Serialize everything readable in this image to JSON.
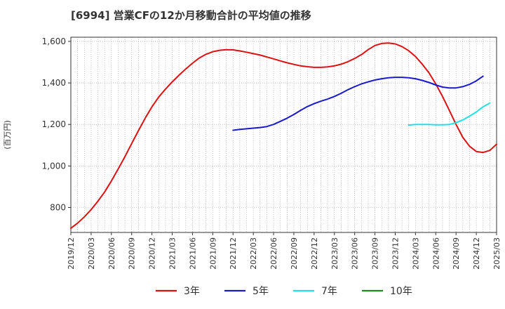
{
  "chart_data": {
    "type": "line",
    "title": "[6994]  営業CFの12か月移動合計の平均値の推移",
    "ylabel": "(百万円)",
    "xlabel": "",
    "ylim": [
      680,
      1620
    ],
    "xlim": [
      "2019-12",
      "2025-03"
    ],
    "yticks": [
      {
        "value": 800,
        "label": "800"
      },
      {
        "value": 1000,
        "label": "1,000"
      },
      {
        "value": 1200,
        "label": "1,200"
      },
      {
        "value": 1400,
        "label": "1,400"
      },
      {
        "value": 1600,
        "label": "1,600"
      }
    ],
    "xticks": [
      "2019/12",
      "2020/03",
      "2020/06",
      "2020/09",
      "2020/12",
      "2021/03",
      "2021/06",
      "2021/09",
      "2021/12",
      "2022/03",
      "2022/06",
      "2022/09",
      "2022/12",
      "2023/03",
      "2023/06",
      "2023/09",
      "2023/12",
      "2024/03",
      "2024/06",
      "2024/09",
      "2024/12",
      "2025/03"
    ],
    "grid": true,
    "legend_position": "bottom",
    "series": [
      {
        "name": "3年",
        "color": "#dd1111",
        "points": [
          [
            "2019-12",
            700
          ],
          [
            "2020-01",
            725
          ],
          [
            "2020-02",
            755
          ],
          [
            "2020-03",
            790
          ],
          [
            "2020-04",
            830
          ],
          [
            "2020-05",
            875
          ],
          [
            "2020-06",
            928
          ],
          [
            "2020-07",
            985
          ],
          [
            "2020-08",
            1045
          ],
          [
            "2020-09",
            1108
          ],
          [
            "2020-10",
            1170
          ],
          [
            "2020-11",
            1230
          ],
          [
            "2020-12",
            1285
          ],
          [
            "2021-01",
            1332
          ],
          [
            "2021-02",
            1370
          ],
          [
            "2021-03",
            1405
          ],
          [
            "2021-04",
            1437
          ],
          [
            "2021-05",
            1467
          ],
          [
            "2021-06",
            1495
          ],
          [
            "2021-07",
            1520
          ],
          [
            "2021-08",
            1538
          ],
          [
            "2021-09",
            1550
          ],
          [
            "2021-10",
            1557
          ],
          [
            "2021-11",
            1560
          ],
          [
            "2021-12",
            1559
          ],
          [
            "2022-01",
            1554
          ],
          [
            "2022-02",
            1548
          ],
          [
            "2022-03",
            1541
          ],
          [
            "2022-04",
            1534
          ],
          [
            "2022-05",
            1525
          ],
          [
            "2022-06",
            1516
          ],
          [
            "2022-07",
            1506
          ],
          [
            "2022-08",
            1497
          ],
          [
            "2022-09",
            1489
          ],
          [
            "2022-10",
            1482
          ],
          [
            "2022-11",
            1478
          ],
          [
            "2022-12",
            1475
          ],
          [
            "2023-01",
            1475
          ],
          [
            "2023-02",
            1477
          ],
          [
            "2023-03",
            1482
          ],
          [
            "2023-04",
            1490
          ],
          [
            "2023-05",
            1502
          ],
          [
            "2023-06",
            1518
          ],
          [
            "2023-07",
            1536
          ],
          [
            "2023-08",
            1560
          ],
          [
            "2023-09",
            1580
          ],
          [
            "2023-10",
            1590
          ],
          [
            "2023-11",
            1592
          ],
          [
            "2023-12",
            1588
          ],
          [
            "2024-01",
            1575
          ],
          [
            "2024-02",
            1555
          ],
          [
            "2024-03",
            1527
          ],
          [
            "2024-04",
            1490
          ],
          [
            "2024-05",
            1448
          ],
          [
            "2024-06",
            1395
          ],
          [
            "2024-07",
            1335
          ],
          [
            "2024-08",
            1268
          ],
          [
            "2024-09",
            1200
          ],
          [
            "2024-10",
            1138
          ],
          [
            "2024-11",
            1095
          ],
          [
            "2024-12",
            1070
          ],
          [
            "2025-01",
            1065
          ],
          [
            "2025-02",
            1075
          ],
          [
            "2025-03",
            1105
          ]
        ]
      },
      {
        "name": "5年",
        "color": "#1a1acc",
        "points": [
          [
            "2021-12",
            1172
          ],
          [
            "2022-01",
            1176
          ],
          [
            "2022-02",
            1179
          ],
          [
            "2022-03",
            1182
          ],
          [
            "2022-04",
            1185
          ],
          [
            "2022-05",
            1190
          ],
          [
            "2022-06",
            1200
          ],
          [
            "2022-07",
            1215
          ],
          [
            "2022-08",
            1230
          ],
          [
            "2022-09",
            1248
          ],
          [
            "2022-10",
            1268
          ],
          [
            "2022-11",
            1286
          ],
          [
            "2022-12",
            1300
          ],
          [
            "2023-01",
            1312
          ],
          [
            "2023-02",
            1322
          ],
          [
            "2023-03",
            1335
          ],
          [
            "2023-04",
            1350
          ],
          [
            "2023-05",
            1367
          ],
          [
            "2023-06",
            1382
          ],
          [
            "2023-07",
            1395
          ],
          [
            "2023-08",
            1405
          ],
          [
            "2023-09",
            1414
          ],
          [
            "2023-10",
            1420
          ],
          [
            "2023-11",
            1425
          ],
          [
            "2023-12",
            1427
          ],
          [
            "2024-01",
            1427
          ],
          [
            "2024-02",
            1425
          ],
          [
            "2024-03",
            1420
          ],
          [
            "2024-04",
            1412
          ],
          [
            "2024-05",
            1402
          ],
          [
            "2024-06",
            1390
          ],
          [
            "2024-07",
            1380
          ],
          [
            "2024-08",
            1376
          ],
          [
            "2024-09",
            1376
          ],
          [
            "2024-10",
            1382
          ],
          [
            "2024-11",
            1393
          ],
          [
            "2024-12",
            1410
          ],
          [
            "2025-01",
            1432
          ]
        ]
      },
      {
        "name": "7年",
        "color": "#22e0e8",
        "points": [
          [
            "2024-02",
            1197
          ],
          [
            "2024-03",
            1200
          ],
          [
            "2024-04",
            1200
          ],
          [
            "2024-05",
            1200
          ],
          [
            "2024-06",
            1198
          ],
          [
            "2024-07",
            1198
          ],
          [
            "2024-08",
            1200
          ],
          [
            "2024-09",
            1208
          ],
          [
            "2024-10",
            1222
          ],
          [
            "2024-11",
            1240
          ],
          [
            "2024-12",
            1260
          ],
          [
            "2025-01",
            1285
          ],
          [
            "2025-02",
            1303
          ]
        ]
      },
      {
        "name": "10年",
        "color": "#228822",
        "points": []
      }
    ]
  }
}
